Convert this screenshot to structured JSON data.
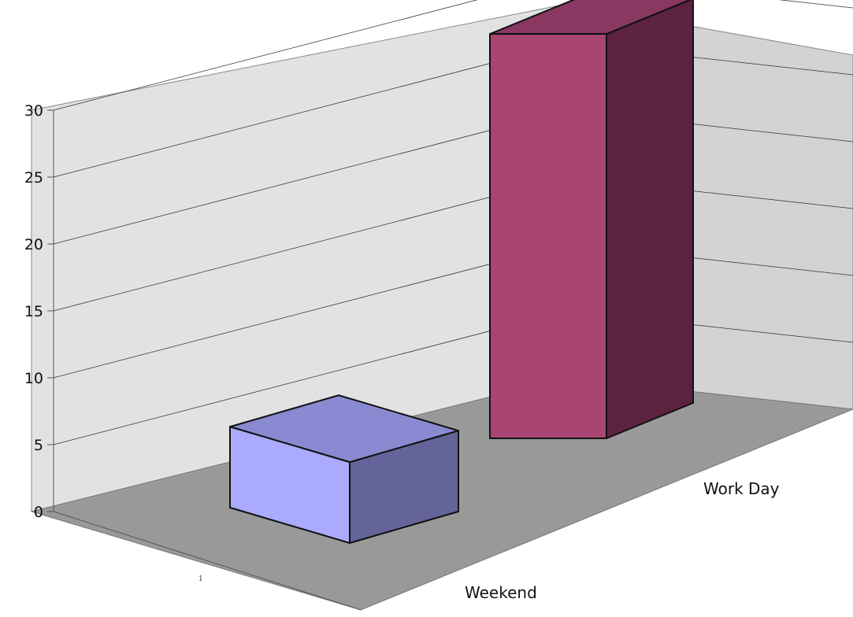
{
  "chart_data": {
    "type": "bar",
    "style": "3d-column",
    "categories": [
      "Weekend",
      "Work Day"
    ],
    "values": [
      6.5,
      32.5
    ],
    "series_label": "1",
    "ylim": [
      0,
      30
    ],
    "yticks": [
      0,
      5,
      10,
      15,
      20,
      25,
      30
    ],
    "title": "",
    "xlabel": "",
    "ylabel": "",
    "grid": true,
    "legend": "none",
    "colors": {
      "weekend_front": "#aaaaff",
      "weekend_top": "#8a8ad2",
      "weekend_side": "#64649a",
      "workday_front": "#a84572",
      "workday_top": "#8a3862",
      "workday_side": "#5c2240",
      "back_wall": "#e2e2e2",
      "side_wall": "#d3d3d3",
      "floor": "#999999"
    }
  }
}
